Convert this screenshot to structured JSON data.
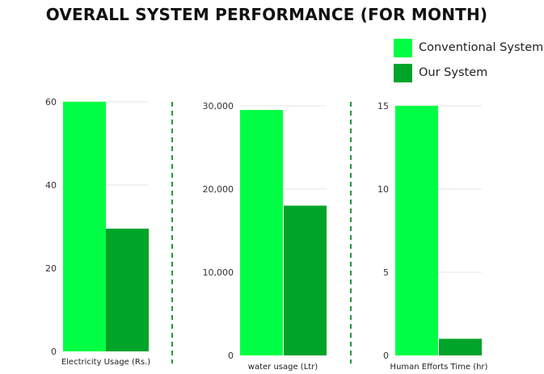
{
  "title": "OVERALL SYSTEM PERFORMANCE (FOR MONTH)",
  "colors": {
    "conventional": "#00ff44",
    "ours": "#00a429",
    "divider": "#1e9a3a",
    "grid": "#e6e6e6"
  },
  "chart_data": [
    {
      "type": "bar",
      "categories": [
        "Electricity Usage (Rs.)"
      ],
      "series": [
        {
          "name": "Conventional System",
          "values": [
            60
          ]
        },
        {
          "name": "Our System",
          "values": [
            29.5
          ]
        }
      ],
      "xlabel": "Electricity Usage (Rs.)",
      "ylim": [
        0,
        60
      ],
      "yticks": [
        0,
        20,
        40,
        60
      ],
      "ytick_labels": [
        "0",
        "20",
        "40",
        "60"
      ],
      "grid": true,
      "legend": "top-right"
    },
    {
      "type": "bar",
      "categories": [
        "water usage (Ltr)"
      ],
      "series": [
        {
          "name": "Conventional System",
          "values": [
            29500
          ]
        },
        {
          "name": "Our System",
          "values": [
            18000
          ]
        }
      ],
      "xlabel": "water usage (Ltr)",
      "ylim": [
        0,
        30000
      ],
      "yticks": [
        0,
        10000,
        20000,
        30000
      ],
      "ytick_labels": [
        "0",
        "10,000",
        "20,000",
        "30,000"
      ],
      "grid": true
    },
    {
      "type": "bar",
      "categories": [
        "Human Efforts Time (hr)"
      ],
      "series": [
        {
          "name": "Conventional System",
          "values": [
            15
          ]
        },
        {
          "name": "Our System",
          "values": [
            1
          ]
        }
      ],
      "xlabel": "Human Efforts Time (hr)",
      "ylim": [
        0,
        15
      ],
      "yticks": [
        0,
        5,
        10,
        15
      ],
      "ytick_labels": [
        "0",
        "5",
        "10",
        "15"
      ],
      "grid": true
    }
  ]
}
